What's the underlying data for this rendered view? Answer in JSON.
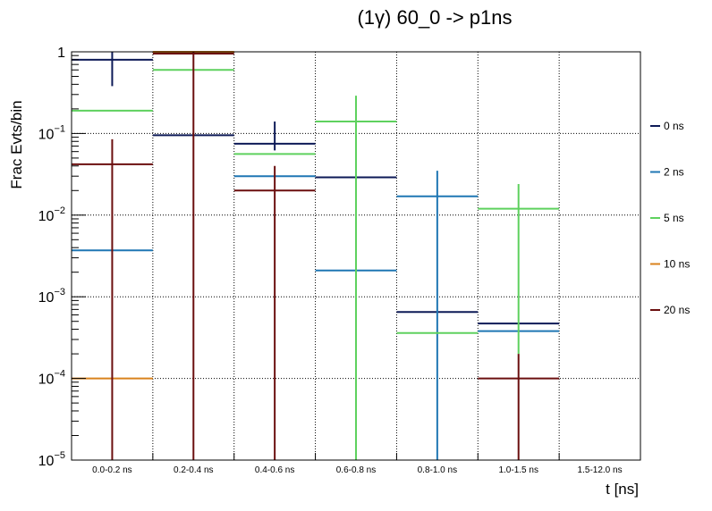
{
  "chart_data": {
    "type": "step-histogram",
    "title": "(1γ) 60_0 -> p1ns",
    "xlabel": "t [ns]",
    "ylabel": "Frac Evts/bin",
    "yscale": "log",
    "ylim": [
      1e-05,
      1
    ],
    "grid": true,
    "legend_position": "right",
    "categories": [
      "0.0-0.2 ns",
      "0.2-0.4 ns",
      "0.4-0.6 ns",
      "0.6-0.8 ns",
      "0.8-1.0 ns",
      "1.0-1.5 ns",
      "1.5-12.0 ns"
    ],
    "y_ticks": [
      {
        "base": "10",
        "exp": "−5"
      },
      {
        "base": "10",
        "exp": "−4"
      },
      {
        "base": "10",
        "exp": "−3"
      },
      {
        "base": "10",
        "exp": "−2"
      },
      {
        "base": "10",
        "exp": "−1"
      },
      {
        "base": "1",
        "exp": ""
      }
    ],
    "series": [
      {
        "name": "0 ns",
        "color": "#0d1a57",
        "values": [
          0.8,
          0.095,
          0.075,
          0.029,
          0.00065,
          0.00047,
          null
        ],
        "err_low": [
          0.38,
          0.095,
          0.062,
          0.029,
          0.00065,
          0.00047,
          null
        ],
        "err_high": [
          1.0,
          0.095,
          0.14,
          0.029,
          0.00065,
          0.00047,
          null
        ]
      },
      {
        "name": "2 ns",
        "color": "#1f77b4",
        "values": [
          0.0037,
          null,
          0.03,
          0.0021,
          0.017,
          0.00038,
          null
        ],
        "err_low": [
          0.0037,
          null,
          0.03,
          0.0021,
          1e-05,
          0.00038,
          null
        ],
        "err_high": [
          0.0037,
          null,
          0.03,
          0.0021,
          0.035,
          0.00038,
          null
        ]
      },
      {
        "name": "5 ns",
        "color": "#5ed15e",
        "values": [
          0.19,
          0.6,
          0.056,
          0.14,
          0.00036,
          0.012,
          null
        ],
        "err_low": [
          0.19,
          0.6,
          0.056,
          1e-05,
          0.00036,
          0.0002,
          null
        ],
        "err_high": [
          0.19,
          0.6,
          0.056,
          0.29,
          0.00036,
          0.024,
          null
        ]
      },
      {
        "name": "10 ns",
        "color": "#d9821c",
        "values": [
          0.0001,
          1.0,
          null,
          null,
          null,
          null,
          null
        ],
        "err_low": [
          0.0001,
          1.0,
          null,
          null,
          null,
          null,
          null
        ],
        "err_high": [
          0.0001,
          1.0,
          null,
          null,
          null,
          null,
          null
        ]
      },
      {
        "name": "20 ns",
        "color": "#6b0f0f",
        "values": [
          0.042,
          0.95,
          0.02,
          null,
          null,
          0.0001,
          null
        ],
        "err_low": [
          1e-05,
          1e-05,
          1e-05,
          null,
          null,
          1e-05,
          null
        ],
        "err_high": [
          0.085,
          1.0,
          0.04,
          null,
          null,
          0.0002,
          null
        ]
      }
    ]
  }
}
